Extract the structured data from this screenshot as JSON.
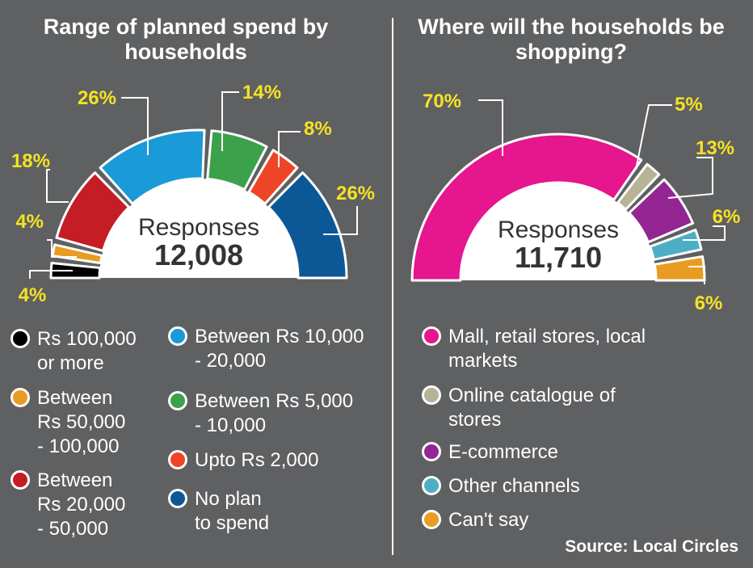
{
  "colors": {
    "background": "#5f6062",
    "highlight": "#f5e323",
    "center": "#ffffff"
  },
  "left": {
    "title": "Range of planned spend by households",
    "center_label": "Responses",
    "center_value": "12,008",
    "legend": [
      {
        "label": "Rs 100,000\nor more",
        "color": "#000000"
      },
      {
        "label": "Between\nRs 50,000\n- 100,000",
        "color": "#e89c22"
      },
      {
        "label": "Between\nRs 20,000\n- 50,000",
        "color": "#c41d26"
      },
      {
        "label": "Between Rs 10,000\n- 20,000",
        "color": "#1a9ad6"
      },
      {
        "label": "Between Rs 5,000\n- 10,000",
        "color": "#3ba14a"
      },
      {
        "label": "Upto Rs 2,000",
        "color": "#ee4527"
      },
      {
        "label": "No plan\nto spend",
        "color": "#0c5896"
      }
    ]
  },
  "right": {
    "title": "Where will the households be shopping?",
    "center_label": "Responses",
    "center_value": "11,710",
    "legend": [
      {
        "label": "Mall, retail stores, local\nmarkets",
        "color": "#e5168e"
      },
      {
        "label": "Online catalogue of\nstores",
        "color": "#b7b397"
      },
      {
        "label": "E-commerce",
        "color": "#932692"
      },
      {
        "label": "Other channels",
        "color": "#4eaec6"
      },
      {
        "label": "Can't say",
        "color": "#e89c22"
      }
    ]
  },
  "source": "Source: Local Circles",
  "chart_data": [
    {
      "type": "pie",
      "title": "Range of planned spend by households",
      "total_responses": 12008,
      "categories": [
        "Rs 100,000 or more",
        "Between Rs 50,000 - 100,000",
        "Between Rs 20,000 - 50,000",
        "Between Rs 10,000 - 20,000",
        "Between Rs 5,000 - 10,000",
        "Upto Rs 2,000",
        "No plan to spend"
      ],
      "values": [
        4,
        4,
        18,
        26,
        14,
        8,
        26
      ],
      "value_labels": [
        "4%",
        "4%",
        "18%",
        "26%",
        "14%",
        "8%",
        "26%"
      ],
      "colors": [
        "#000000",
        "#e89c22",
        "#c41d26",
        "#1a9ad6",
        "#3ba14a",
        "#ee4527",
        "#0c5896"
      ]
    },
    {
      "type": "pie",
      "title": "Where will the households be shopping?",
      "total_responses": 11710,
      "categories": [
        "Mall, retail stores, local markets",
        "Online catalogue of stores",
        "E-commerce",
        "Other channels",
        "Can't say"
      ],
      "values": [
        70,
        5,
        13,
        6,
        6
      ],
      "value_labels": [
        "70%",
        "5%",
        "13%",
        "6%",
        "6%"
      ],
      "colors": [
        "#e5168e",
        "#b7b397",
        "#932692",
        "#4eaec6",
        "#e89c22"
      ]
    }
  ]
}
